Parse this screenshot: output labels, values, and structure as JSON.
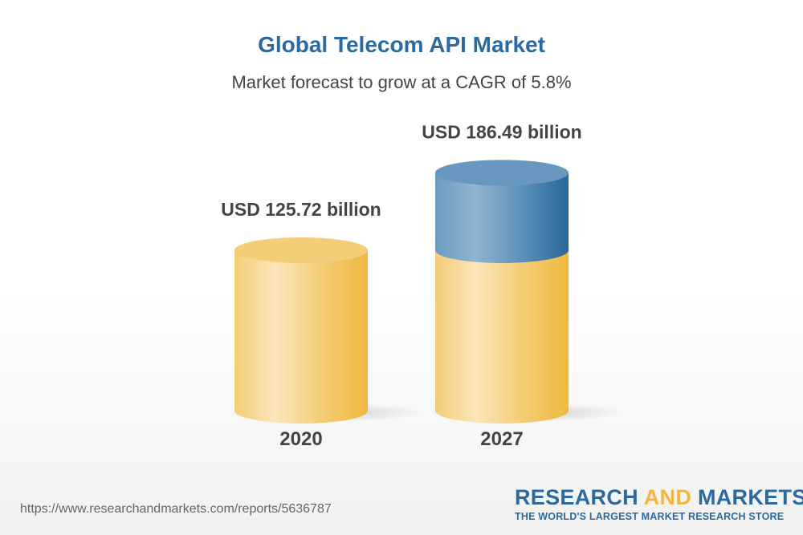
{
  "chart_data": {
    "type": "bar",
    "style": "3d-cylinder",
    "title": "Global Telecom API Market",
    "subtitle": "Market forecast to grow at a CAGR of 5.8%",
    "categories": [
      "2020",
      "2027"
    ],
    "values": [
      125.72,
      186.49
    ],
    "data_labels": [
      "USD 125.72 billion",
      "USD 186.49 billion"
    ],
    "unit": "USD billion",
    "colors": {
      "base": "#f2c55e",
      "growth": "#3a78aa"
    }
  },
  "footer": {
    "url": "https://www.researchandmarkets.com/reports/5636787",
    "logo_part1": "RESEARCH",
    "logo_part2": "AND",
    "logo_part3": "MARKETS",
    "logo_tagline": "THE WORLD'S LARGEST MARKET RESEARCH STORE"
  }
}
